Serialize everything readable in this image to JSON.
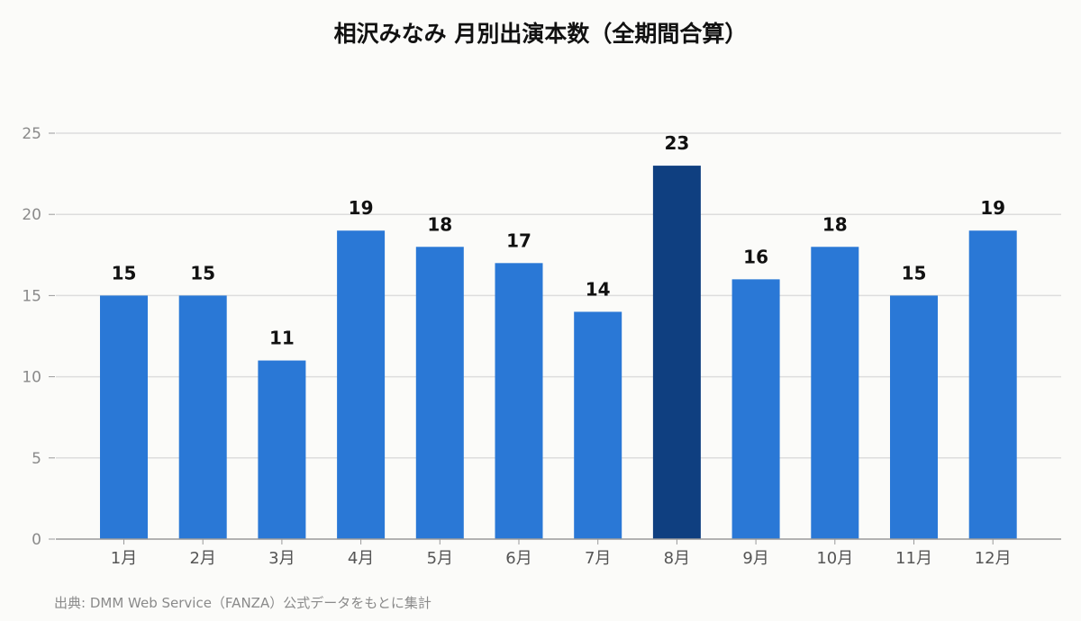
{
  "chart_data": {
    "type": "bar",
    "title": "相沢みなみ 月別出演本数（全期間合算）",
    "categories": [
      "1月",
      "2月",
      "3月",
      "4月",
      "5月",
      "6月",
      "7月",
      "8月",
      "9月",
      "10月",
      "11月",
      "12月"
    ],
    "values": [
      15,
      15,
      11,
      19,
      18,
      17,
      14,
      23,
      16,
      18,
      15,
      19
    ],
    "ylim": [
      0,
      25
    ],
    "yticks": [
      0,
      5,
      10,
      15,
      20,
      25
    ],
    "grid": true,
    "data_labels": true,
    "highlight_category": "8月",
    "colors": {
      "bar": "#2a78d6",
      "highlight": "#0f3f80",
      "grid": "#dddddd",
      "axis": "#9a9a9a",
      "tick_text": "#8a8a8a",
      "label_text": "#111111"
    }
  },
  "footer": {
    "source": "出典: DMM Web Service（FANZA）公式データをもとに集計"
  }
}
